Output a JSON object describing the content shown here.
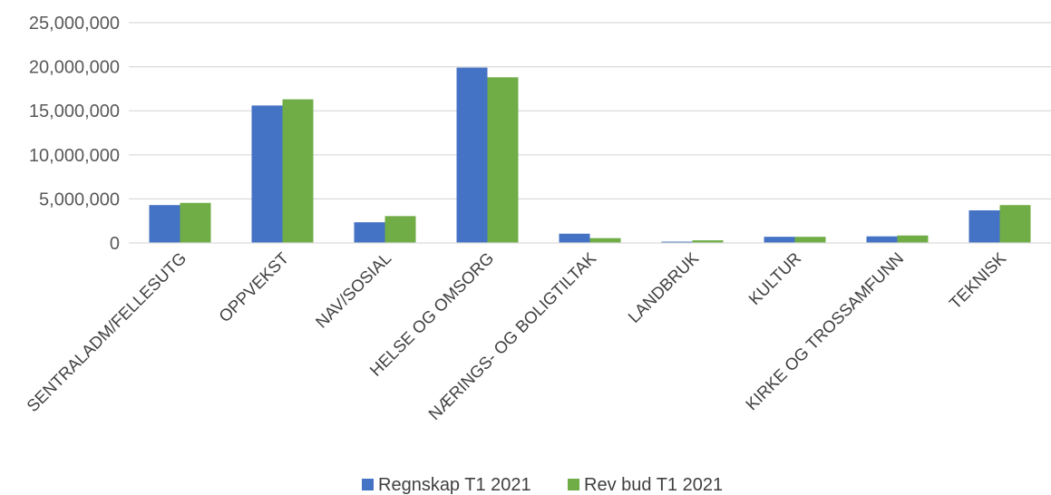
{
  "chart_data": {
    "type": "bar",
    "categories": [
      "SENTRALADM/FELLESUTG",
      "OPPVEKST",
      "NAV/SOSIAL",
      "HELSE OG OMSORG",
      "NÆRINGS- OG BOLIGTILTAK",
      "LANDBRUK",
      "KULTUR",
      "KIRKE OG TROSSAMFUNN",
      "TEKNISK"
    ],
    "series": [
      {
        "name": "Regnskap T1 2021",
        "color": "#4472C4",
        "values": [
          4300000,
          15600000,
          2350000,
          19900000,
          1050000,
          150000,
          700000,
          750000,
          3700000
        ]
      },
      {
        "name": "Rev bud T1 2021",
        "color": "#70AD47",
        "values": [
          4550000,
          16300000,
          3050000,
          18800000,
          550000,
          300000,
          700000,
          850000,
          4300000
        ]
      }
    ],
    "yticks": [
      "25,000,000",
      "20,000,000",
      "15,000,000",
      "10,000,000",
      "5,000,000",
      "0"
    ],
    "ylim": [
      0,
      25000000
    ],
    "grid": true,
    "legend_position": "bottom"
  }
}
